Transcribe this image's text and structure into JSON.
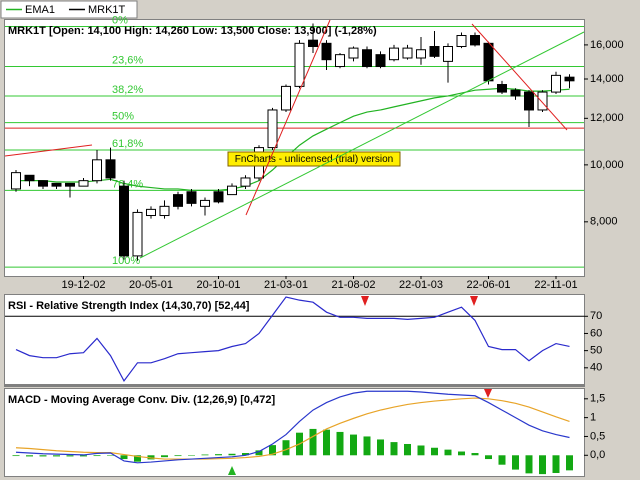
{
  "watermark": "FnCharts - unlicensed (trial) version",
  "chart_data": [
    {
      "type": "candlestick",
      "title": "MRK1T [Open: 14,100  High: 14,260  Low: 13,500  Close: 13,900] (-1,28%)",
      "log_scale": true,
      "ylim": [
        6.47,
        17.64
      ],
      "yticks": [
        {
          "value": 16,
          "label": "16,000"
        },
        {
          "value": 14,
          "label": "14,000"
        },
        {
          "value": 12,
          "label": "12,000"
        },
        {
          "value": 10,
          "label": "10,000"
        },
        {
          "value": 8,
          "label": "8,000"
        }
      ],
      "categories": [
        null,
        null,
        null,
        null,
        null,
        "19-12-02",
        null,
        null,
        null,
        null,
        "20-05-01",
        null,
        null,
        null,
        null,
        "20-10-01",
        null,
        null,
        null,
        null,
        "21-03-01",
        null,
        null,
        null,
        null,
        "21-08-02",
        null,
        null,
        null,
        null,
        "22-01-03",
        null,
        null,
        null,
        null,
        "22-06-01",
        null,
        null,
        null,
        null,
        "22-11-01",
        null
      ],
      "series": [
        {
          "name": "EMA1",
          "type": "line",
          "color": "#22b322",
          "values": [
            9.4,
            9.4,
            9.4,
            9.35,
            9.35,
            9.35,
            9.4,
            9.45,
            9.3,
            9.2,
            9.15,
            9.1,
            9.1,
            9.05,
            9.05,
            9.05,
            9.1,
            9.2,
            9.4,
            9.8,
            10.3,
            10.8,
            11.2,
            11.5,
            11.8,
            12.1,
            12.3,
            12.4,
            12.55,
            12.7,
            12.85,
            13.0,
            13.1,
            13.25,
            13.4,
            13.45,
            13.5,
            13.45,
            13.35,
            13.35,
            13.4,
            13.45
          ]
        },
        {
          "name": "MRK1T",
          "type": "candlestick",
          "color": "#000000",
          "open": [
            9.1,
            9.6,
            9.4,
            9.3,
            9.3,
            9.2,
            9.4,
            10.2,
            9.2,
            7.0,
            8.2,
            8.2,
            8.9,
            9.0,
            8.5,
            9.0,
            8.9,
            9.2,
            9.5,
            10.7,
            12.4,
            13.6,
            16.3,
            16.1,
            14.7,
            15.2,
            15.7,
            15.4,
            15.1,
            15.2,
            15.2,
            15.9,
            15.0,
            15.9,
            16.6,
            16.1,
            13.7,
            13.4,
            13.3,
            12.4,
            13.3,
            14.1
          ],
          "high": [
            9.8,
            9.6,
            9.4,
            9.3,
            9.3,
            9.5,
            10.6,
            10.7,
            9.4,
            8.4,
            8.5,
            8.7,
            9.0,
            9.1,
            8.8,
            9.1,
            9.3,
            9.6,
            10.8,
            12.5,
            13.7,
            16.3,
            17.4,
            16.3,
            15.5,
            15.9,
            15.9,
            15.6,
            16.0,
            16.0,
            16.5,
            16.9,
            16.1,
            16.8,
            16.8,
            16.2,
            13.9,
            13.5,
            13.4,
            13.4,
            14.4,
            14.26
          ],
          "low": [
            9.0,
            9.2,
            9.1,
            9.1,
            8.8,
            9.2,
            9.3,
            9.4,
            6.9,
            6.87,
            8.1,
            8.1,
            8.4,
            8.5,
            8.2,
            8.6,
            8.9,
            9.1,
            9.4,
            10.6,
            12.3,
            13.5,
            15.5,
            14.5,
            14.6,
            15.0,
            14.6,
            14.6,
            15.0,
            15.1,
            14.8,
            15.2,
            13.8,
            15.8,
            15.9,
            13.7,
            13.2,
            12.9,
            11.6,
            12.3,
            13.2,
            13.5
          ],
          "close": [
            9.7,
            9.4,
            9.2,
            9.2,
            9.2,
            9.4,
            10.2,
            9.5,
            7.0,
            8.3,
            8.4,
            8.5,
            8.5,
            8.6,
            8.7,
            8.65,
            9.2,
            9.5,
            10.7,
            12.4,
            13.6,
            16.1,
            15.9,
            15.1,
            15.4,
            15.8,
            14.7,
            14.7,
            15.8,
            15.8,
            15.7,
            15.3,
            15.9,
            16.6,
            16.0,
            13.9,
            13.3,
            13.1,
            12.4,
            13.3,
            14.2,
            13.9
          ]
        }
      ],
      "fibonacci": [
        {
          "value": 17.2,
          "label": "0%"
        },
        {
          "value": 14.7,
          "label": "23,6%"
        },
        {
          "value": 13.1,
          "label": "38,2%"
        },
        {
          "value": 11.8,
          "label": "50%"
        },
        {
          "value": 10.6,
          "label": "61,8%"
        },
        {
          "value": 9.05,
          "label": "76,4%"
        },
        {
          "value": 6.7,
          "label": "100%"
        }
      ],
      "fibonacci_color": "#33c833",
      "red_level": 11.55
    },
    {
      "type": "line",
      "title": "RSI - Relative Strength Index (14,30,70) [52,44]",
      "ylim": [
        29.4,
        82.4
      ],
      "yticks": [
        40,
        50,
        60,
        70
      ],
      "levels": [
        70,
        30
      ],
      "series": [
        {
          "color": "#2a2acc",
          "values": [
            50.6,
            47.1,
            45.9,
            45.9,
            48.2,
            48.8,
            57.1,
            47.1,
            32.4,
            42.9,
            42.9,
            45.3,
            48.2,
            48.8,
            49.4,
            50.0,
            52.4,
            54.1,
            60.0,
            70.6,
            81.2,
            79.4,
            78.2,
            72.4,
            69.4,
            69.4,
            68.8,
            68.8,
            68.8,
            68.2,
            68.8,
            69.4,
            72.4,
            75.3,
            67.6,
            52.4,
            50.6,
            50.6,
            44.1,
            50.0,
            54.1,
            52.44
          ]
        }
      ]
    },
    {
      "type": "line",
      "title": "MACD - Moving Average Conv. Div. (12,26,9) [0,472]",
      "ylim": [
        -0.55,
        1.76
      ],
      "yticks": [
        {
          "value": 0,
          "label": "0,0"
        },
        {
          "value": 0.5,
          "label": "0,5"
        },
        1,
        {
          "value": 1.5,
          "label": "1,5"
        }
      ],
      "series": [
        {
          "type": "bar",
          "color": "#13a813",
          "values": [
            -0.02,
            -0.03,
            -0.03,
            -0.03,
            -0.03,
            -0.03,
            -0.02,
            -0.01,
            -0.1,
            -0.17,
            -0.11,
            -0.05,
            -0.02,
            0,
            0.02,
            0.03,
            0.04,
            0.06,
            0.13,
            0.27,
            0.4,
            0.6,
            0.7,
            0.68,
            0.62,
            0.55,
            0.5,
            0.42,
            0.35,
            0.3,
            0.26,
            0.2,
            0.15,
            0.1,
            0.06,
            -0.1,
            -0.25,
            -0.38,
            -0.48,
            -0.5,
            -0.47,
            -0.4
          ]
        },
        {
          "type": "line",
          "color": "#e8a428",
          "values": [
            0.2,
            0.18,
            0.15,
            0.12,
            0.1,
            0.08,
            0.07,
            0.07,
            0.02,
            -0.03,
            -0.07,
            -0.1,
            -0.1,
            -0.1,
            -0.1,
            -0.09,
            -0.08,
            -0.06,
            -0.03,
            0.03,
            0.15,
            0.3,
            0.5,
            0.7,
            0.85,
            0.98,
            1.1,
            1.2,
            1.28,
            1.35,
            1.4,
            1.44,
            1.47,
            1.5,
            1.52,
            1.5,
            1.45,
            1.38,
            1.28,
            1.15,
            1.02,
            0.9
          ]
        },
        {
          "type": "line",
          "color": "#2a38cc",
          "values": [
            0.08,
            0.06,
            0.04,
            0.03,
            0.02,
            0.01,
            0.05,
            0.06,
            -0.15,
            -0.2,
            -0.18,
            -0.15,
            -0.12,
            -0.1,
            -0.08,
            -0.06,
            -0.04,
            0.0,
            0.1,
            0.3,
            0.55,
            0.9,
            1.2,
            1.4,
            1.55,
            1.65,
            1.7,
            1.7,
            1.7,
            1.7,
            1.68,
            1.65,
            1.62,
            1.6,
            1.58,
            1.4,
            1.2,
            1.0,
            0.8,
            0.65,
            0.55,
            0.472
          ]
        }
      ]
    }
  ]
}
